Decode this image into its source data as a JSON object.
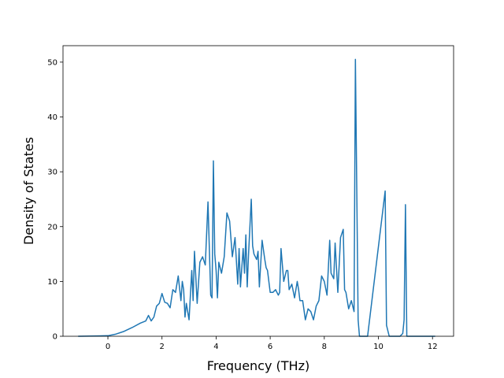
{
  "chart_data": {
    "type": "line",
    "title": "",
    "xlabel": "Frequency (THz)",
    "ylabel": "Density of States",
    "xlim": [
      -1.66,
      12.78
    ],
    "ylim": [
      0,
      53
    ],
    "grid": false,
    "legend": "none",
    "line_color": "#1f77b4",
    "x_ticks": [
      0,
      2,
      4,
      6,
      8,
      10,
      12
    ],
    "x_tick_labels": [
      "0",
      "2",
      "4",
      "6",
      "8",
      "10",
      "12"
    ],
    "y_ticks": [
      0,
      10,
      20,
      30,
      40,
      50
    ],
    "y_tick_labels": [
      "0",
      "10",
      "20",
      "30",
      "40",
      "50"
    ],
    "series": [
      {
        "x": [
          -1.1,
          0.0,
          0.3,
          0.6,
          0.9,
          1.2,
          1.4,
          1.5,
          1.6,
          1.7,
          1.8,
          1.9,
          2.0,
          2.1,
          2.2,
          2.3,
          2.4,
          2.5,
          2.6,
          2.7,
          2.75,
          2.8,
          2.85,
          2.9,
          3.0,
          3.1,
          3.15,
          3.2,
          3.3,
          3.4,
          3.5,
          3.6,
          3.7,
          3.8,
          3.85,
          3.9,
          3.95,
          4.0,
          4.05,
          4.1,
          4.2,
          4.3,
          4.4,
          4.5,
          4.6,
          4.7,
          4.8,
          4.85,
          4.9,
          5.0,
          5.05,
          5.1,
          5.15,
          5.2,
          5.3,
          5.35,
          5.4,
          5.5,
          5.55,
          5.6,
          5.7,
          5.8,
          5.85,
          5.9,
          6.0,
          6.1,
          6.2,
          6.3,
          6.35,
          6.4,
          6.5,
          6.6,
          6.65,
          6.7,
          6.8,
          6.9,
          7.0,
          7.05,
          7.1,
          7.2,
          7.3,
          7.4,
          7.5,
          7.6,
          7.7,
          7.8,
          7.9,
          8.0,
          8.1,
          8.2,
          8.25,
          8.3,
          8.35,
          8.4,
          8.5,
          8.6,
          8.7,
          8.75,
          8.8,
          8.85,
          8.9,
          9.0,
          9.1,
          9.15,
          9.2,
          9.25,
          9.3,
          9.35,
          9.4,
          9.45,
          9.5,
          9.6,
          10.25,
          10.3,
          10.4,
          10.45,
          10.5,
          10.8,
          10.9,
          10.95,
          11.0,
          11.05,
          11.1,
          12.1
        ],
        "y": [
          0,
          0.1,
          0.4,
          0.9,
          1.6,
          2.4,
          2.8,
          3.8,
          2.8,
          3.5,
          5.5,
          6.0,
          7.8,
          6.2,
          6.0,
          5.2,
          8.5,
          8.0,
          11.0,
          6.5,
          10.0,
          8.5,
          3.5,
          6.0,
          3.0,
          12.0,
          6.5,
          15.5,
          6.0,
          13.5,
          14.5,
          13.0,
          24.5,
          7.5,
          7.0,
          32.0,
          15.0,
          12.0,
          7.0,
          13.5,
          11.5,
          14.5,
          22.5,
          21.0,
          14.5,
          18.0,
          9.5,
          16.0,
          9.0,
          16.0,
          11.5,
          18.5,
          9.0,
          15.0,
          25.0,
          16.5,
          15.0,
          14.0,
          15.5,
          9.0,
          17.5,
          14.0,
          12.5,
          12.0,
          8.0,
          8.0,
          8.5,
          7.5,
          8.0,
          16.0,
          10.0,
          12.0,
          12.0,
          8.5,
          9.5,
          7.0,
          10.0,
          8.5,
          6.5,
          6.5,
          3.0,
          5.0,
          4.5,
          3.0,
          5.5,
          6.5,
          11.0,
          10.0,
          7.5,
          17.5,
          11.5,
          11.0,
          10.5,
          17.0,
          8.0,
          18.0,
          19.5,
          8.5,
          8.0,
          6.5,
          5.0,
          6.5,
          4.5,
          50.5,
          27.0,
          3.0,
          0,
          0,
          0,
          0,
          0,
          0,
          26.5,
          2.0,
          0,
          0,
          0,
          0,
          0.5,
          3.0,
          24.0,
          0,
          0,
          0
        ]
      }
    ]
  }
}
